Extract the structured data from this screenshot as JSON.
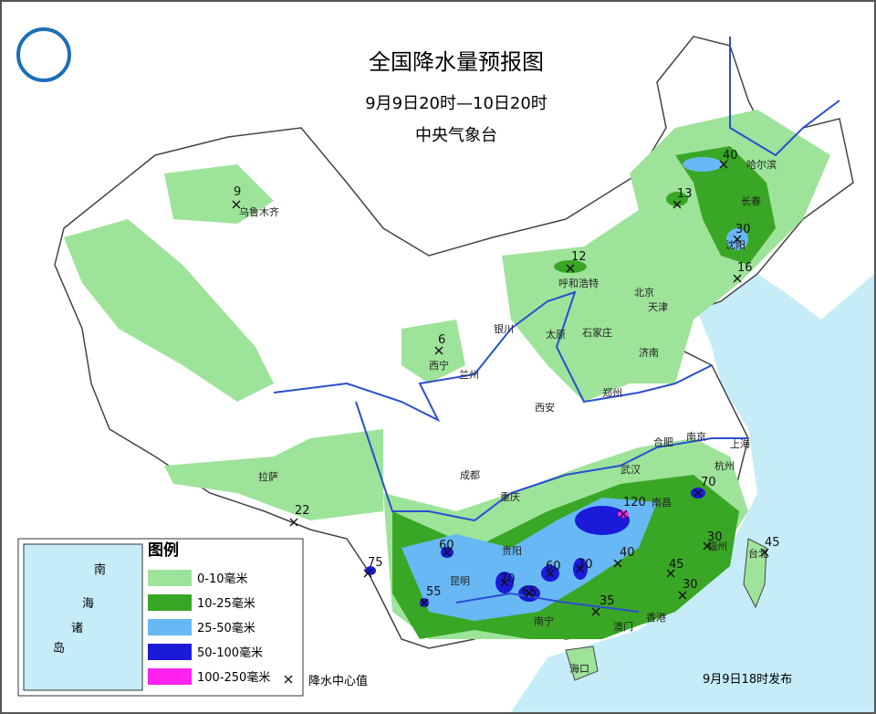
{
  "header": {
    "title": "全国降水量预报图",
    "period": "9月9日20时—10日20时",
    "issuer": "中央气象台"
  },
  "cities": [
    "乌鲁木齐",
    "哈尔滨",
    "长春",
    "沈阳",
    "呼和浩特",
    "北京",
    "天津",
    "石家庄",
    "太原",
    "济南",
    "西宁",
    "兰州",
    "银川",
    "郑州",
    "西安",
    "南京",
    "合肥",
    "上海",
    "杭州",
    "武汉",
    "成都",
    "重庆",
    "南昌",
    "拉萨",
    "贵阳",
    "昆明",
    "福州",
    "台北",
    "南宁",
    "澳门",
    "香港",
    "海口"
  ],
  "centers": [
    9,
    40,
    13,
    30,
    12,
    16,
    6,
    22,
    120,
    70,
    60,
    75,
    55,
    60,
    70,
    65,
    70,
    40,
    45,
    30,
    45,
    30,
    35
  ],
  "legend": {
    "title": "图例",
    "items": [
      "0-10毫米",
      "10-25毫米",
      "25-50毫米",
      "50-100毫米",
      "100-250毫米"
    ],
    "center_label": "降水中心值"
  },
  "inset": [
    "南",
    "海",
    "诸",
    "岛"
  ],
  "footer": "9月9日18时发布"
}
